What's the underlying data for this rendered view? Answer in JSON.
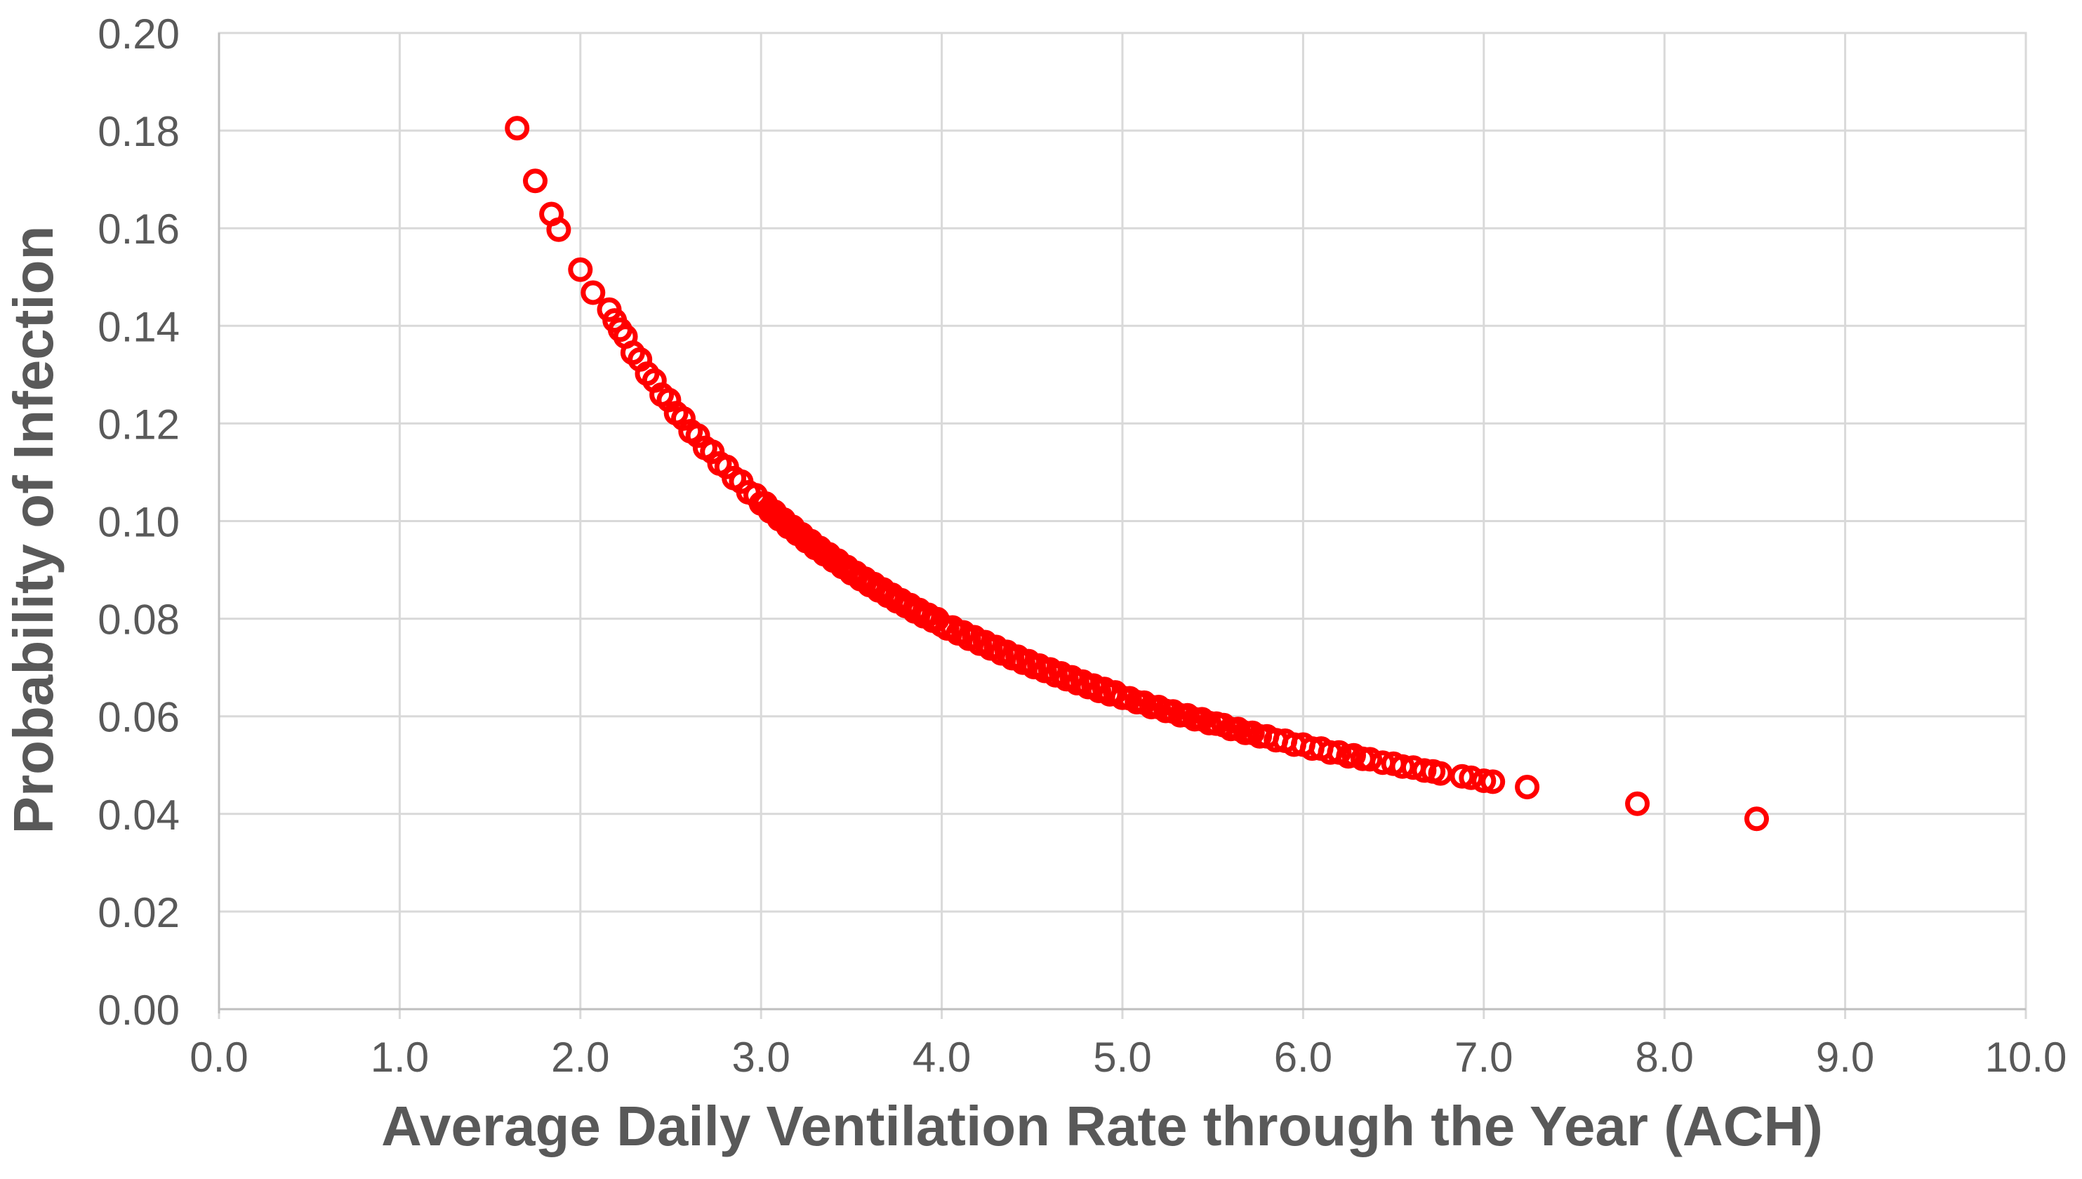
{
  "chart_data": {
    "type": "scatter",
    "title": "",
    "xlabel": "Average Daily Ventilation Rate through the Year (ACH)",
    "ylabel": "Probability of Infection",
    "xlim": [
      0.0,
      10.0
    ],
    "ylim": [
      0.0,
      0.2
    ],
    "grid": true,
    "legend_position": "none",
    "x_ticks": [
      {
        "value": 0,
        "label": "0.0"
      },
      {
        "value": 1,
        "label": "1.0"
      },
      {
        "value": 2,
        "label": "2.0"
      },
      {
        "value": 3,
        "label": "3.0"
      },
      {
        "value": 4,
        "label": "4.0"
      },
      {
        "value": 5,
        "label": "5.0"
      },
      {
        "value": 6,
        "label": "6.0"
      },
      {
        "value": 7,
        "label": "7.0"
      },
      {
        "value": 8,
        "label": "8.0"
      },
      {
        "value": 9,
        "label": "9.0"
      },
      {
        "value": 10,
        "label": "10.0"
      }
    ],
    "y_ticks": [
      {
        "value": 0.0,
        "label": "0.00"
      },
      {
        "value": 0.02,
        "label": "0.02"
      },
      {
        "value": 0.04,
        "label": "0.04"
      },
      {
        "value": 0.06,
        "label": "0.06"
      },
      {
        "value": 0.08,
        "label": "0.08"
      },
      {
        "value": 0.1,
        "label": "0.10"
      },
      {
        "value": 0.12,
        "label": "0.12"
      },
      {
        "value": 0.14,
        "label": "0.14"
      },
      {
        "value": 0.16,
        "label": "0.16"
      },
      {
        "value": 0.18,
        "label": "0.18"
      },
      {
        "value": 0.2,
        "label": "0.20"
      }
    ],
    "series": [
      {
        "marker": "open-circle",
        "color": "#FF0000",
        "points": [
          [
            1.65,
            0.1805
          ],
          [
            1.75,
            0.1697
          ],
          [
            1.84,
            0.1629
          ],
          [
            1.88,
            0.1597
          ],
          [
            2.0,
            0.1515
          ],
          [
            2.07,
            0.1468
          ],
          [
            2.16,
            0.1433
          ],
          [
            2.19,
            0.1411
          ],
          [
            2.22,
            0.1392
          ],
          [
            2.25,
            0.1378
          ],
          [
            2.29,
            0.1345
          ],
          [
            2.33,
            0.1331
          ],
          [
            2.37,
            0.1302
          ],
          [
            2.41,
            0.1288
          ],
          [
            2.45,
            0.1259
          ],
          [
            2.49,
            0.1248
          ],
          [
            2.53,
            0.1221
          ],
          [
            2.57,
            0.121
          ],
          [
            2.61,
            0.1184
          ],
          [
            2.65,
            0.1175
          ],
          [
            2.69,
            0.115
          ],
          [
            2.73,
            0.1142
          ],
          [
            2.77,
            0.1118
          ],
          [
            2.81,
            0.1111
          ],
          [
            2.85,
            0.1088
          ],
          [
            2.89,
            0.1081
          ],
          [
            2.93,
            0.1059
          ],
          [
            2.97,
            0.1053
          ],
          [
            3.0,
            0.1036
          ],
          [
            3.025,
            0.1036
          ],
          [
            3.05,
            0.102
          ],
          [
            3.075,
            0.1019
          ],
          [
            3.1,
            0.1004
          ],
          [
            3.125,
            0.1003
          ],
          [
            3.15,
            0.0988
          ],
          [
            3.175,
            0.0988
          ],
          [
            3.2,
            0.0974
          ],
          [
            3.225,
            0.0973
          ],
          [
            3.25,
            0.0959
          ],
          [
            3.275,
            0.0959
          ],
          [
            3.3,
            0.0945
          ],
          [
            3.325,
            0.0945
          ],
          [
            3.35,
            0.0932
          ],
          [
            3.375,
            0.0932
          ],
          [
            3.4,
            0.0919
          ],
          [
            3.425,
            0.0919
          ],
          [
            3.45,
            0.0906
          ],
          [
            3.475,
            0.0906
          ],
          [
            3.5,
            0.0893
          ],
          [
            3.525,
            0.0894
          ],
          [
            3.55,
            0.0881
          ],
          [
            3.575,
            0.0882
          ],
          [
            3.6,
            0.0869
          ],
          [
            3.625,
            0.0871
          ],
          [
            3.65,
            0.0858
          ],
          [
            3.675,
            0.086
          ],
          [
            3.7,
            0.0847
          ],
          [
            3.725,
            0.0849
          ],
          [
            3.75,
            0.0836
          ],
          [
            3.775,
            0.0838
          ],
          [
            3.8,
            0.0826
          ],
          [
            3.825,
            0.0828
          ],
          [
            3.85,
            0.0815
          ],
          [
            3.875,
            0.0818
          ],
          [
            3.9,
            0.0805
          ],
          [
            3.925,
            0.0808
          ],
          [
            3.95,
            0.0796
          ],
          [
            3.975,
            0.0799
          ],
          [
            4.0,
            0.0787
          ],
          [
            4.03,
            0.078
          ],
          [
            4.06,
            0.0782
          ],
          [
            4.09,
            0.077
          ],
          [
            4.12,
            0.0772
          ],
          [
            4.15,
            0.0759
          ],
          [
            4.18,
            0.0762
          ],
          [
            4.21,
            0.0749
          ],
          [
            4.24,
            0.0752
          ],
          [
            4.27,
            0.0739
          ],
          [
            4.3,
            0.0742
          ],
          [
            4.33,
            0.0729
          ],
          [
            4.36,
            0.0732
          ],
          [
            4.39,
            0.0719
          ],
          [
            4.42,
            0.0722
          ],
          [
            4.45,
            0.071
          ],
          [
            4.48,
            0.0713
          ],
          [
            4.51,
            0.0701
          ],
          [
            4.54,
            0.0704
          ],
          [
            4.57,
            0.0693
          ],
          [
            4.6,
            0.0696
          ],
          [
            4.63,
            0.0684
          ],
          [
            4.66,
            0.0688
          ],
          [
            4.69,
            0.0676
          ],
          [
            4.72,
            0.068
          ],
          [
            4.75,
            0.0668
          ],
          [
            4.78,
            0.0671
          ],
          [
            4.81,
            0.066
          ],
          [
            4.84,
            0.0663
          ],
          [
            4.87,
            0.0652
          ],
          [
            4.9,
            0.0656
          ],
          [
            4.93,
            0.0645
          ],
          [
            4.96,
            0.0649
          ],
          [
            5.0,
            0.0638
          ],
          [
            5.04,
            0.0637
          ],
          [
            5.08,
            0.0629
          ],
          [
            5.12,
            0.0628
          ],
          [
            5.16,
            0.0619
          ],
          [
            5.2,
            0.0619
          ],
          [
            5.24,
            0.0611
          ],
          [
            5.28,
            0.061
          ],
          [
            5.32,
            0.0602
          ],
          [
            5.36,
            0.0602
          ],
          [
            5.4,
            0.0594
          ],
          [
            5.44,
            0.0594
          ],
          [
            5.48,
            0.0586
          ],
          [
            5.52,
            0.0585
          ],
          [
            5.56,
            0.0582
          ],
          [
            5.6,
            0.0574
          ],
          [
            5.64,
            0.0574
          ],
          [
            5.68,
            0.0566
          ],
          [
            5.72,
            0.0566
          ],
          [
            5.76,
            0.0559
          ],
          [
            5.8,
            0.0559
          ],
          [
            5.85,
            0.0551
          ],
          [
            5.9,
            0.055
          ],
          [
            5.95,
            0.0542
          ],
          [
            6.0,
            0.0542
          ],
          [
            6.05,
            0.0534
          ],
          [
            6.1,
            0.0534
          ],
          [
            6.15,
            0.0526
          ],
          [
            6.2,
            0.0526
          ],
          [
            6.25,
            0.0518
          ],
          [
            6.28,
            0.052
          ],
          [
            6.33,
            0.0513
          ],
          [
            6.37,
            0.0512
          ],
          [
            6.44,
            0.0505
          ],
          [
            6.5,
            0.0503
          ],
          [
            6.55,
            0.0497
          ],
          [
            6.61,
            0.0495
          ],
          [
            6.67,
            0.0489
          ],
          [
            6.72,
            0.0487
          ],
          [
            6.76,
            0.0483
          ],
          [
            6.88,
            0.0477
          ],
          [
            6.93,
            0.0474
          ],
          [
            7.0,
            0.0468
          ],
          [
            7.05,
            0.0466
          ],
          [
            7.24,
            0.0455
          ],
          [
            7.85,
            0.0421
          ],
          [
            8.51,
            0.039
          ]
        ]
      }
    ]
  },
  "style": {
    "background": "#FFFFFF",
    "marker_color": "#FF0000",
    "gridline_color": "#D9D9D9",
    "plot_border_color": "#D9D9D9",
    "axis_line_color": "#BFBFBF",
    "tick_label_color": "#595959",
    "axis_title_color": "#595959"
  }
}
